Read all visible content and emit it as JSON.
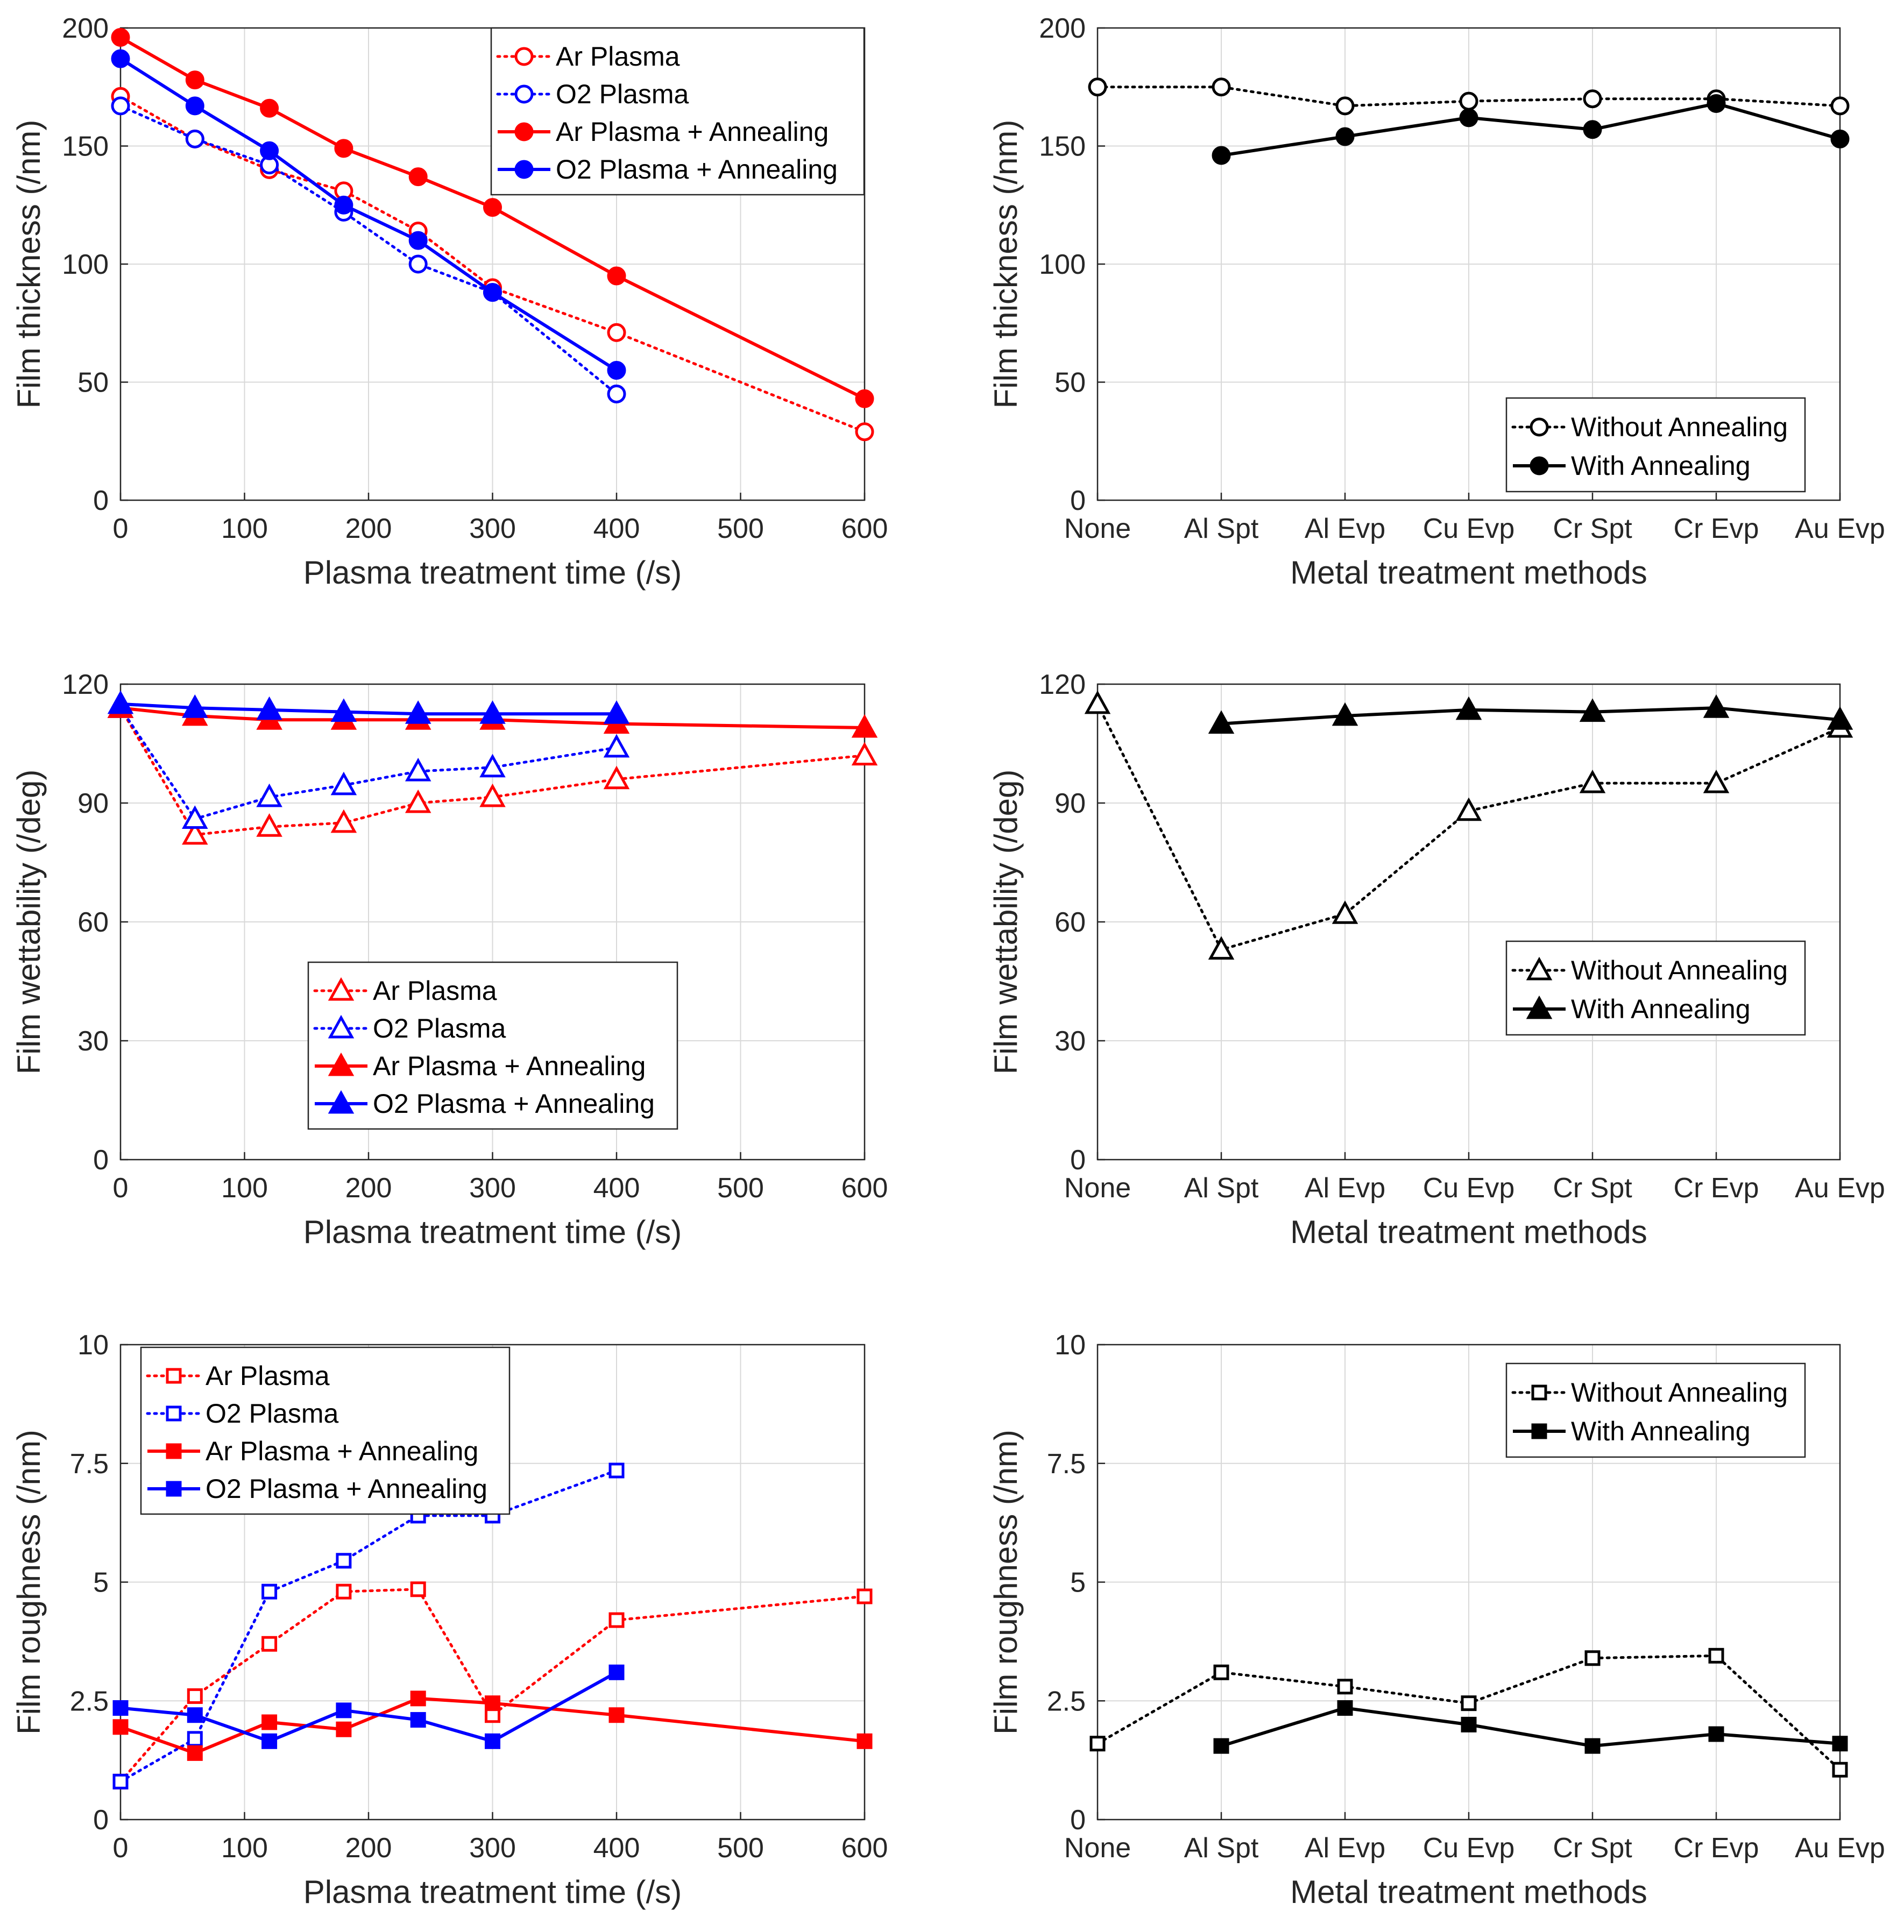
{
  "colors": {
    "red": "#ff0000",
    "blue": "#0000ff",
    "black": "#000000",
    "grid": "#d9d9d9",
    "axis": "#262626"
  },
  "chart_data": [
    {
      "id": "thickness-vs-time",
      "type": "line",
      "xlabel": "Plasma treatment time (/s)",
      "ylabel": "Film thickness (/nm)",
      "xlim": [
        0,
        600
      ],
      "ylim": [
        0,
        200
      ],
      "xticks": [
        0,
        100,
        200,
        300,
        400,
        500,
        600
      ],
      "xticklabels": [
        "0",
        "100",
        "200",
        "300",
        "400",
        "500",
        "600"
      ],
      "yticks": [
        0,
        50,
        100,
        150,
        200
      ],
      "yticklabels": [
        "0",
        "50",
        "100",
        "150",
        "200"
      ],
      "grid": true,
      "legend_position": "top-right",
      "series": [
        {
          "name": "Ar Plasma",
          "color": "#ff0000",
          "style": "dotted",
          "marker": "circle",
          "filled": false,
          "x": [
            0,
            60,
            120,
            180,
            240,
            300,
            400,
            600
          ],
          "y": [
            171,
            153,
            140,
            131,
            114,
            90,
            71,
            29
          ]
        },
        {
          "name": "O2 Plasma",
          "color": "#0000ff",
          "style": "dotted",
          "marker": "circle",
          "filled": false,
          "x": [
            0,
            60,
            120,
            180,
            240,
            300,
            400
          ],
          "y": [
            167,
            153,
            142,
            122,
            100,
            88,
            45
          ]
        },
        {
          "name": "Ar Plasma + Annealing",
          "color": "#ff0000",
          "style": "solid",
          "marker": "circle",
          "filled": true,
          "x": [
            0,
            60,
            120,
            180,
            240,
            300,
            400,
            600
          ],
          "y": [
            196,
            178,
            166,
            149,
            137,
            124,
            95,
            43
          ]
        },
        {
          "name": "O2 Plasma + Annealing",
          "color": "#0000ff",
          "style": "solid",
          "marker": "circle",
          "filled": true,
          "x": [
            0,
            60,
            120,
            180,
            240,
            300,
            400
          ],
          "y": [
            187,
            167,
            148,
            125,
            110,
            88,
            55
          ]
        }
      ]
    },
    {
      "id": "thickness-vs-metal",
      "type": "line",
      "xlabel": "Metal treatment methods",
      "ylabel": "Film thickness (/nm)",
      "categories": [
        "None",
        "Al Spt",
        "Al Evp",
        "Cu Evp",
        "Cr Spt",
        "Cr Evp",
        "Au Evp"
      ],
      "ylim": [
        0,
        200
      ],
      "yticks": [
        0,
        50,
        100,
        150,
        200
      ],
      "yticklabels": [
        "0",
        "50",
        "100",
        "150",
        "200"
      ],
      "grid": true,
      "legend_position": "bottom-right",
      "series": [
        {
          "name": "Without Annealing",
          "color": "#000000",
          "style": "dotted",
          "marker": "circle",
          "filled": false,
          "values": [
            175,
            175,
            167,
            169,
            170,
            170,
            167
          ]
        },
        {
          "name": "With Annealing",
          "color": "#000000",
          "style": "solid",
          "marker": "circle",
          "filled": true,
          "values": [
            null,
            146,
            154,
            162,
            157,
            168,
            153
          ]
        }
      ]
    },
    {
      "id": "wettability-vs-time",
      "type": "line",
      "xlabel": "Plasma treatment time (/s)",
      "ylabel": "Film wettability (/deg)",
      "xlim": [
        0,
        600
      ],
      "ylim": [
        0,
        120
      ],
      "xticks": [
        0,
        100,
        200,
        300,
        400,
        500,
        600
      ],
      "xticklabels": [
        "0",
        "100",
        "200",
        "300",
        "400",
        "500",
        "600"
      ],
      "yticks": [
        0,
        30,
        60,
        90,
        120
      ],
      "yticklabels": [
        "0",
        "30",
        "60",
        "90",
        "120"
      ],
      "grid": true,
      "legend_position": "bottom-center",
      "series": [
        {
          "name": "Ar Plasma",
          "color": "#ff0000",
          "style": "dotted",
          "marker": "triangle",
          "filled": false,
          "x": [
            0,
            60,
            120,
            180,
            240,
            300,
            400,
            600
          ],
          "y": [
            114,
            82,
            84,
            85,
            90,
            91.5,
            96,
            102
          ]
        },
        {
          "name": "O2 Plasma",
          "color": "#0000ff",
          "style": "dotted",
          "marker": "triangle",
          "filled": false,
          "x": [
            0,
            60,
            120,
            180,
            240,
            300,
            400
          ],
          "y": [
            114,
            86,
            91.5,
            94.5,
            98,
            99,
            104
          ]
        },
        {
          "name": "Ar Plasma + Annealing",
          "color": "#ff0000",
          "style": "solid",
          "marker": "triangle",
          "filled": true,
          "x": [
            0,
            60,
            120,
            180,
            240,
            300,
            400,
            600
          ],
          "y": [
            114,
            112,
            111,
            111,
            111,
            111,
            110,
            109
          ]
        },
        {
          "name": "O2 Plasma + Annealing",
          "color": "#0000ff",
          "style": "solid",
          "marker": "triangle",
          "filled": true,
          "x": [
            0,
            60,
            120,
            180,
            240,
            300,
            400
          ],
          "y": [
            115,
            114,
            113.5,
            113,
            112.5,
            112.5,
            112.5
          ]
        }
      ]
    },
    {
      "id": "wettability-vs-metal",
      "type": "line",
      "xlabel": "Metal treatment methods",
      "ylabel": "Film wettability (/deg)",
      "categories": [
        "None",
        "Al Spt",
        "Al Evp",
        "Cu Evp",
        "Cr Spt",
        "Cr Evp",
        "Au Evp"
      ],
      "ylim": [
        0,
        120
      ],
      "yticks": [
        0,
        30,
        60,
        90,
        120
      ],
      "yticklabels": [
        "0",
        "30",
        "60",
        "90",
        "120"
      ],
      "grid": true,
      "legend_position": "right",
      "series": [
        {
          "name": "Without Annealing",
          "color": "#000000",
          "style": "dotted",
          "marker": "triangle",
          "filled": false,
          "values": [
            115,
            53,
            62,
            88,
            95,
            95,
            109
          ]
        },
        {
          "name": "With Annealing",
          "color": "#000000",
          "style": "solid",
          "marker": "triangle",
          "filled": true,
          "values": [
            null,
            110,
            112,
            113.5,
            113,
            114,
            111
          ]
        }
      ]
    },
    {
      "id": "roughness-vs-time",
      "type": "line",
      "xlabel": "Plasma treatment time (/s)",
      "ylabel": "Film roughness (/nm)",
      "xlim": [
        0,
        600
      ],
      "ylim": [
        0,
        10
      ],
      "xticks": [
        0,
        100,
        200,
        300,
        400,
        500,
        600
      ],
      "xticklabels": [
        "0",
        "100",
        "200",
        "300",
        "400",
        "500",
        "600"
      ],
      "yticks": [
        0,
        2.5,
        5,
        7.5,
        10
      ],
      "yticklabels": [
        "0",
        "2.5",
        "5",
        "7.5",
        "10"
      ],
      "grid": true,
      "legend_position": "top-left",
      "series": [
        {
          "name": "Ar Plasma",
          "color": "#ff0000",
          "style": "dotted",
          "marker": "square",
          "filled": false,
          "x": [
            0,
            60,
            120,
            180,
            240,
            300,
            400,
            600
          ],
          "y": [
            0.8,
            2.6,
            3.7,
            4.8,
            4.85,
            2.2,
            4.2,
            4.7
          ]
        },
        {
          "name": "O2 Plasma",
          "color": "#0000ff",
          "style": "dotted",
          "marker": "square",
          "filled": false,
          "x": [
            0,
            60,
            120,
            180,
            240,
            300,
            400
          ],
          "y": [
            0.8,
            1.7,
            4.8,
            5.45,
            6.4,
            6.4,
            7.35
          ]
        },
        {
          "name": "Ar Plasma + Annealing",
          "color": "#ff0000",
          "style": "solid",
          "marker": "square",
          "filled": true,
          "x": [
            0,
            60,
            120,
            180,
            240,
            300,
            400,
            600
          ],
          "y": [
            1.95,
            1.4,
            2.05,
            1.9,
            2.55,
            2.45,
            2.2,
            1.65
          ]
        },
        {
          "name": "O2 Plasma + Annealing",
          "color": "#0000ff",
          "style": "solid",
          "marker": "square",
          "filled": true,
          "x": [
            0,
            60,
            120,
            180,
            240,
            300,
            400
          ],
          "y": [
            2.35,
            2.2,
            1.65,
            2.3,
            2.1,
            1.65,
            3.1
          ]
        }
      ]
    },
    {
      "id": "roughness-vs-metal",
      "type": "line",
      "xlabel": "Metal treatment methods",
      "ylabel": "Film roughness (/nm)",
      "categories": [
        "None",
        "Al Spt",
        "Al Evp",
        "Cu Evp",
        "Cr Spt",
        "Cr Evp",
        "Au Evp"
      ],
      "ylim": [
        0,
        10
      ],
      "yticks": [
        0,
        2.5,
        5,
        7.5,
        10
      ],
      "yticklabels": [
        "0",
        "2.5",
        "5",
        "7.5",
        "10"
      ],
      "grid": true,
      "legend_position": "top-right",
      "series": [
        {
          "name": "Without Annealing",
          "color": "#000000",
          "style": "dotted",
          "marker": "square",
          "filled": false,
          "values": [
            1.6,
            3.1,
            2.8,
            2.45,
            3.4,
            3.45,
            1.05
          ]
        },
        {
          "name": "With Annealing",
          "color": "#000000",
          "style": "solid",
          "marker": "square",
          "filled": true,
          "values": [
            null,
            1.55,
            2.35,
            2.0,
            1.55,
            1.8,
            1.6
          ]
        }
      ]
    }
  ]
}
